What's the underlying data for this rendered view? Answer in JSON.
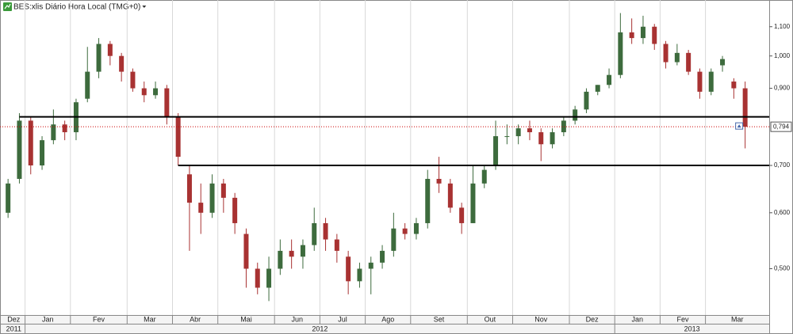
{
  "chart_data": {
    "type": "candlestick",
    "title": "BES:xlis Diário Hora Local (TMG+0)",
    "categories": [
      "Dez",
      null,
      "Jan",
      null,
      null,
      null,
      "Fev",
      null,
      null,
      null,
      null,
      "Mar",
      null,
      null,
      null,
      "Abr",
      null,
      null,
      null,
      "Mai",
      null,
      null,
      null,
      null,
      "Jun",
      null,
      null,
      null,
      "Jul",
      null,
      null,
      null,
      "Ago",
      null,
      null,
      null,
      "Set",
      null,
      null,
      null,
      null,
      "Out",
      null,
      null,
      null,
      "Nov",
      null,
      null,
      null,
      null,
      "Dez",
      null,
      null,
      null,
      "Jan",
      null,
      null,
      null,
      "Fev",
      null,
      null,
      null,
      "Mar",
      null,
      null,
      null
    ],
    "year_categories": [
      "2011",
      null,
      "2012",
      null,
      null,
      null,
      null,
      null,
      null,
      null,
      null,
      null,
      null,
      null,
      null,
      null,
      null,
      null,
      null,
      null,
      null,
      null,
      null,
      null,
      null,
      null,
      null,
      null,
      null,
      null,
      null,
      null,
      null,
      null,
      null,
      null,
      null,
      null,
      null,
      null,
      null,
      null,
      null,
      null,
      null,
      null,
      null,
      null,
      null,
      null,
      null,
      null,
      null,
      null,
      "2013",
      null,
      null,
      null,
      null,
      null,
      null,
      null,
      null,
      null,
      null,
      null
    ],
    "open": [
      0.6,
      0.67,
      0.81,
      0.7,
      0.76,
      0.8,
      0.78,
      0.87,
      0.95,
      1.04,
      1.0,
      0.95,
      0.9,
      0.88,
      0.9,
      0.82,
      0.68,
      0.62,
      0.6,
      0.66,
      0.63,
      0.56,
      0.5,
      0.47,
      0.5,
      0.53,
      0.52,
      0.54,
      0.58,
      0.55,
      0.52,
      0.48,
      0.5,
      0.51,
      0.53,
      0.57,
      0.56,
      0.58,
      0.67,
      0.66,
      0.61,
      0.58,
      0.66,
      0.7,
      0.77,
      0.77,
      0.79,
      0.78,
      0.75,
      0.78,
      0.81,
      0.84,
      0.89,
      0.91,
      0.94,
      1.08,
      1.06,
      1.1,
      1.04,
      0.98,
      1.01,
      0.95,
      0.89,
      0.97,
      0.92,
      0.9
    ],
    "high": [
      0.67,
      0.83,
      0.82,
      0.77,
      0.84,
      0.81,
      0.87,
      1.03,
      1.06,
      1.05,
      1.01,
      0.96,
      0.92,
      0.92,
      0.91,
      0.83,
      0.7,
      0.66,
      0.68,
      0.67,
      0.64,
      0.57,
      0.51,
      0.52,
      0.55,
      0.55,
      0.55,
      0.61,
      0.59,
      0.56,
      0.53,
      0.51,
      0.52,
      0.54,
      0.6,
      0.58,
      0.59,
      0.69,
      0.72,
      0.67,
      0.62,
      0.7,
      0.7,
      0.81,
      0.8,
      0.8,
      0.81,
      0.79,
      0.79,
      0.82,
      0.85,
      0.9,
      0.91,
      0.96,
      1.15,
      1.13,
      1.14,
      1.11,
      1.05,
      1.04,
      1.02,
      0.96,
      0.96,
      1.0,
      0.93,
      0.92
    ],
    "low": [
      0.59,
      0.66,
      0.68,
      0.69,
      0.75,
      0.76,
      0.76,
      0.86,
      0.93,
      0.97,
      0.92,
      0.89,
      0.86,
      0.87,
      0.8,
      0.7,
      0.53,
      0.56,
      0.59,
      0.6,
      0.56,
      0.47,
      0.46,
      0.45,
      0.49,
      0.5,
      0.5,
      0.53,
      0.53,
      0.51,
      0.46,
      0.47,
      0.46,
      0.5,
      0.52,
      0.55,
      0.55,
      0.57,
      0.64,
      0.6,
      0.56,
      0.58,
      0.65,
      0.69,
      0.75,
      0.75,
      0.76,
      0.71,
      0.74,
      0.77,
      0.8,
      0.83,
      0.88,
      0.9,
      0.93,
      1.04,
      1.04,
      1.02,
      0.96,
      0.97,
      0.94,
      0.87,
      0.88,
      0.95,
      0.87,
      0.74
    ],
    "close": [
      0.66,
      0.81,
      0.7,
      0.76,
      0.8,
      0.78,
      0.86,
      0.95,
      1.04,
      1.0,
      0.95,
      0.9,
      0.88,
      0.9,
      0.82,
      0.72,
      0.62,
      0.6,
      0.66,
      0.63,
      0.58,
      0.5,
      0.47,
      0.5,
      0.53,
      0.52,
      0.54,
      0.58,
      0.55,
      0.53,
      0.48,
      0.5,
      0.51,
      0.53,
      0.57,
      0.56,
      0.58,
      0.67,
      0.66,
      0.61,
      0.58,
      0.66,
      0.69,
      0.77,
      0.77,
      0.79,
      0.78,
      0.75,
      0.78,
      0.81,
      0.84,
      0.89,
      0.91,
      0.94,
      1.08,
      1.06,
      1.1,
      1.04,
      0.98,
      1.01,
      0.95,
      0.89,
      0.95,
      0.99,
      0.9,
      0.794
    ],
    "up_color": "#3d6b3d",
    "down_color": "#a83232",
    "log_scale": true,
    "ylim": [
      0.43,
      1.2
    ],
    "yticks": [
      {
        "value": 1.1,
        "label": "1,100"
      },
      {
        "value": 1.0,
        "label": "1,000"
      },
      {
        "value": 0.9,
        "label": "0,900"
      },
      {
        "value": 0.7,
        "label": "0,700"
      },
      {
        "value": 0.6,
        "label": "0,600"
      },
      {
        "value": 0.5,
        "label": "0,500"
      }
    ],
    "lines": [
      {
        "x": [
          1,
          65
        ],
        "value": 0.82
      },
      {
        "x": [
          15,
          65
        ],
        "value": 0.7
      }
    ],
    "current_price": {
      "value": 0.794,
      "label": "0,794",
      "color": "#cc0000"
    }
  }
}
